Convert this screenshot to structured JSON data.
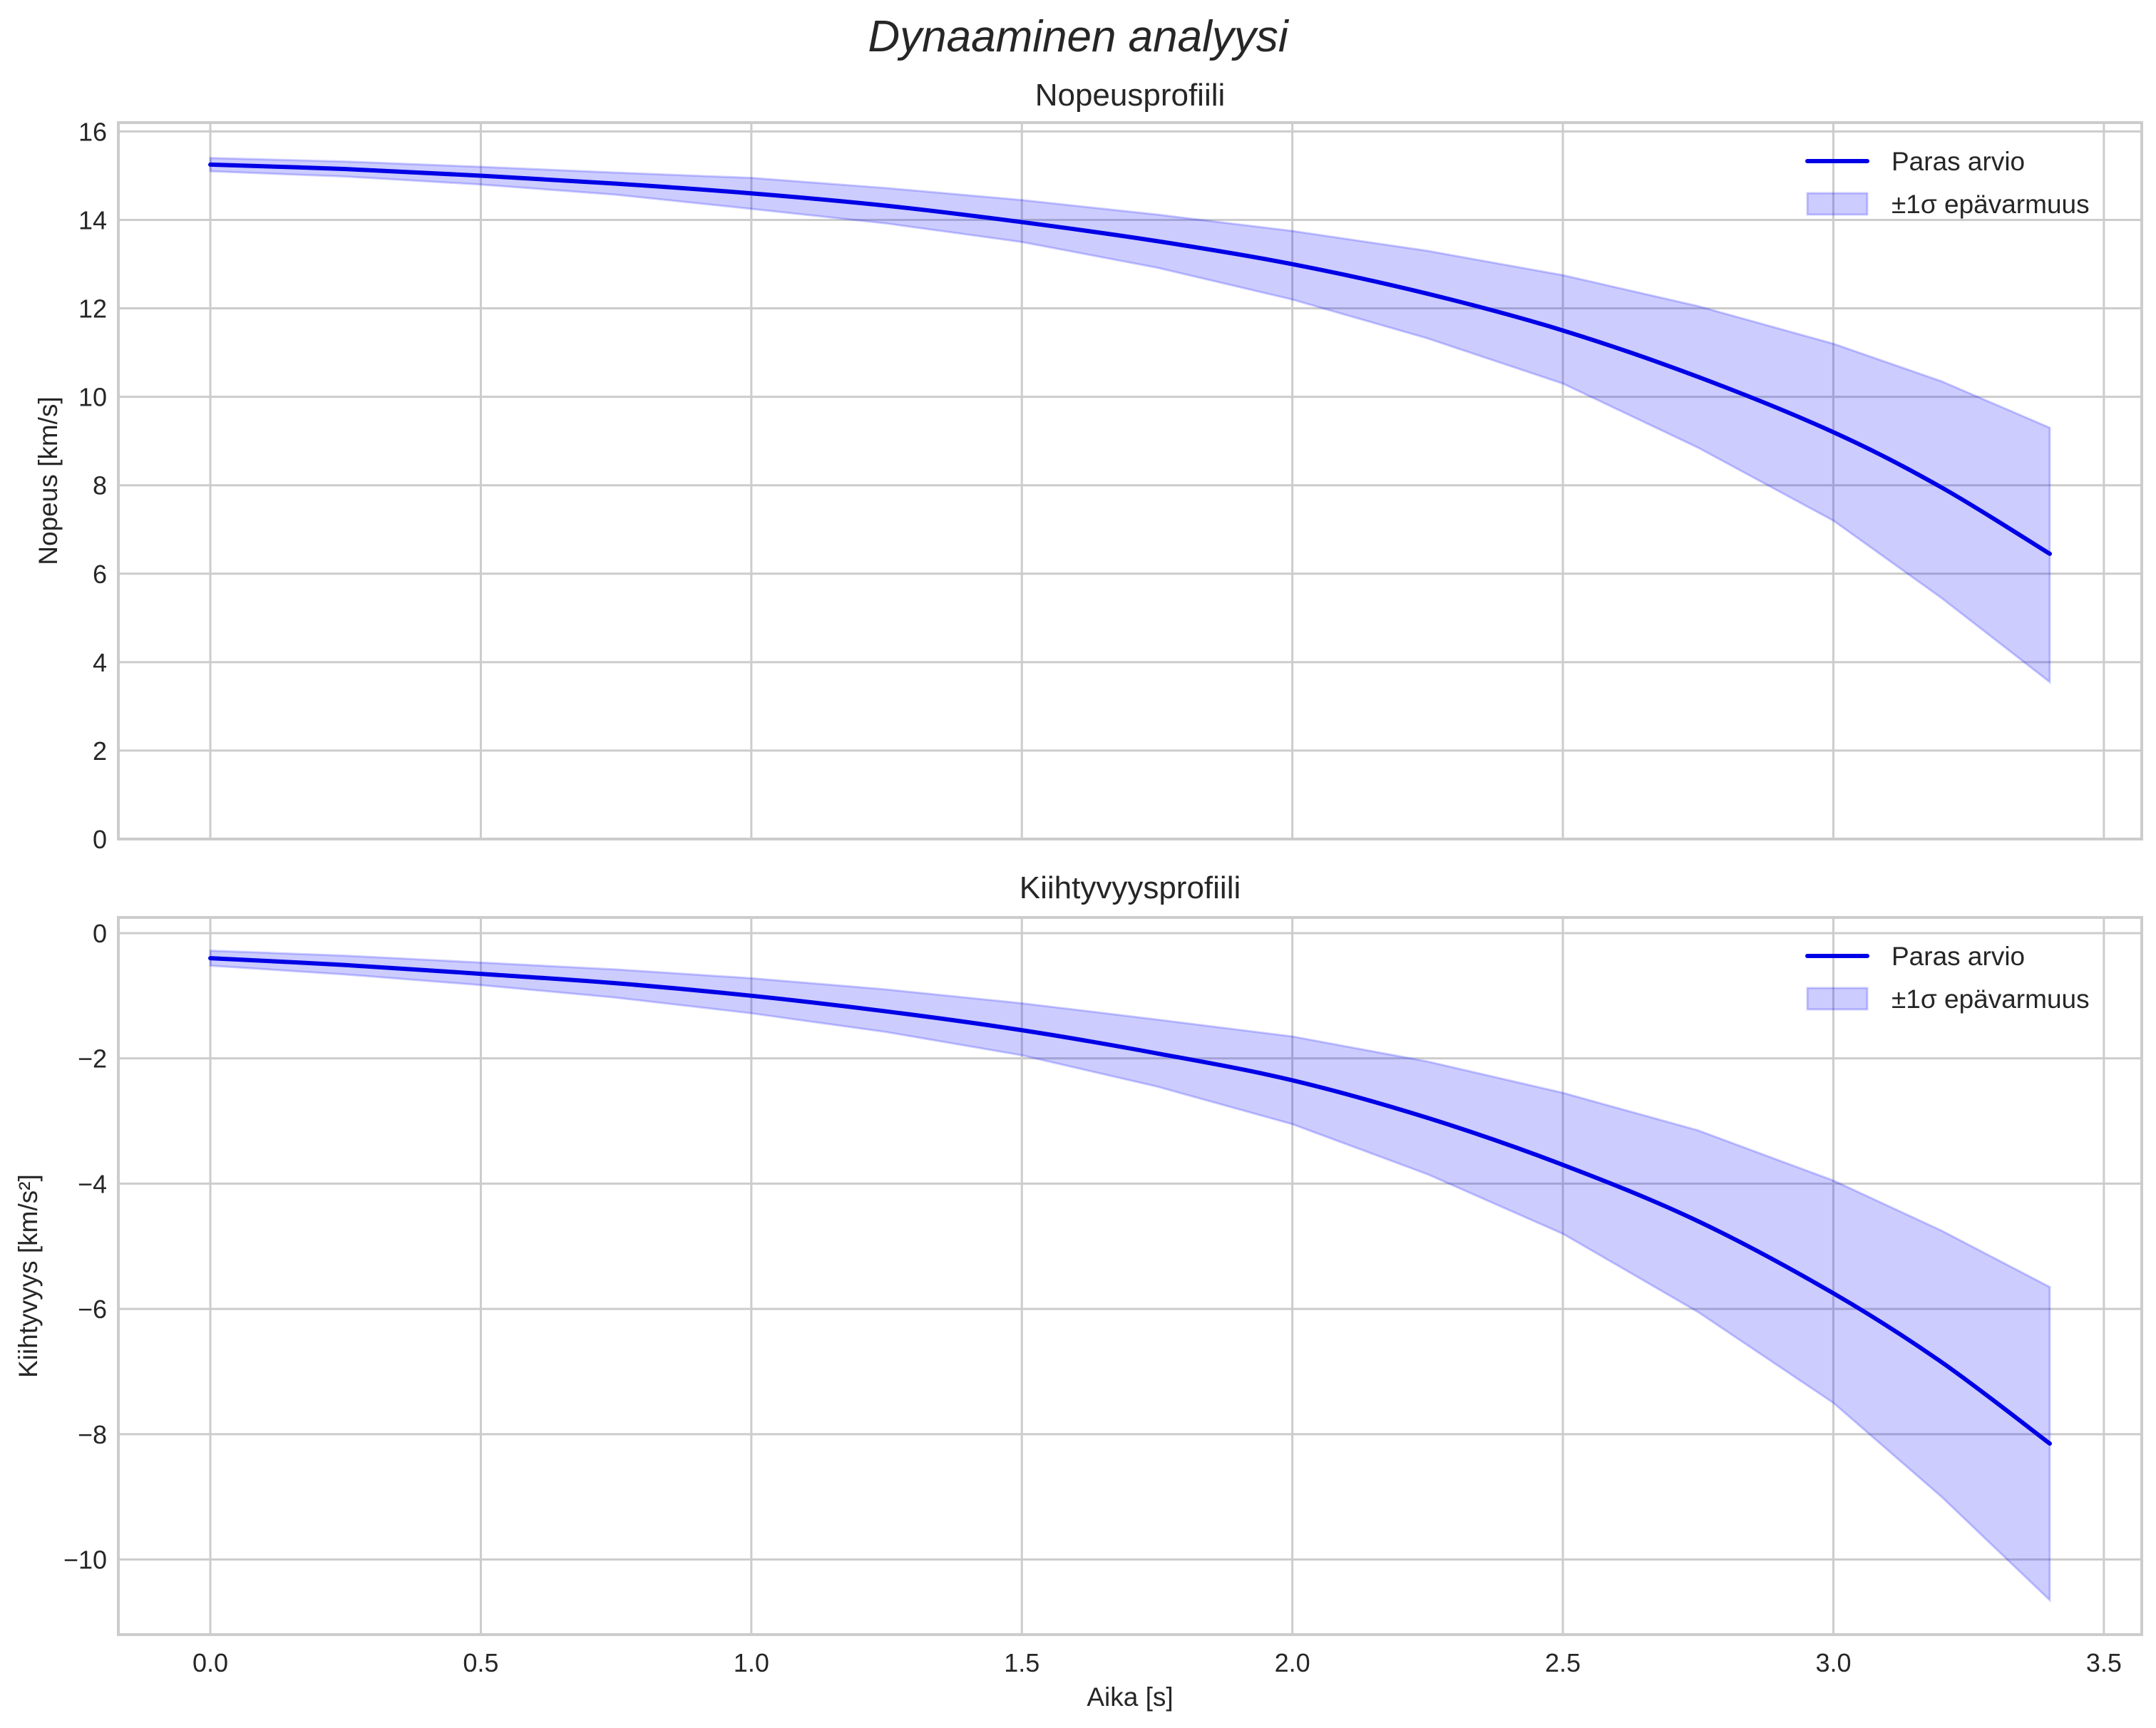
{
  "figure": {
    "suptitle": "Dynaaminen analyysi",
    "xlabel": "Aika [s]",
    "x_ticks": [
      "0.0",
      "0.5",
      "1.0",
      "1.5",
      "2.0",
      "2.5",
      "3.0",
      "3.5"
    ],
    "colors": {
      "line": "#0000e6",
      "band_fill": "#0000ff",
      "band_alpha": 0.2,
      "grid": "#cccccc",
      "text": "#262626"
    }
  },
  "legend": {
    "line_label": "Paras arvio",
    "band_label": "±1σ epävarmuus"
  },
  "chart_data": [
    {
      "type": "line",
      "title": "Nopeusprofiili",
      "xlabel": "",
      "ylabel": "Nopeus [km/s]",
      "xlim": [
        -0.17,
        3.57
      ],
      "ylim": [
        0,
        16.2
      ],
      "y_ticks": [
        "0",
        "2",
        "4",
        "6",
        "8",
        "10",
        "12",
        "14",
        "16"
      ],
      "grid": true,
      "legend_position": "upper right",
      "x": [
        0.0,
        0.25,
        0.5,
        0.75,
        1.0,
        1.25,
        1.5,
        1.75,
        2.0,
        2.25,
        2.5,
        2.75,
        3.0,
        3.2,
        3.4
      ],
      "series": [
        {
          "name": "Paras arvio",
          "kind": "line",
          "values": [
            15.25,
            15.15,
            15.0,
            14.82,
            14.6,
            14.32,
            13.95,
            13.52,
            13.0,
            12.33,
            11.5,
            10.45,
            9.2,
            7.95,
            6.45
          ]
        },
        {
          "name": "±1σ epävarmuus (lower)",
          "kind": "band_lower",
          "values": [
            15.1,
            14.98,
            14.8,
            14.57,
            14.25,
            13.92,
            13.5,
            12.92,
            12.2,
            11.32,
            10.3,
            8.85,
            7.2,
            5.45,
            3.55
          ]
        },
        {
          "name": "±1σ epävarmuus (upper)",
          "kind": "band_upper",
          "values": [
            15.4,
            15.32,
            15.2,
            15.07,
            14.95,
            14.72,
            14.45,
            14.12,
            13.75,
            13.3,
            12.75,
            12.05,
            11.2,
            10.35,
            9.3
          ]
        }
      ]
    },
    {
      "type": "line",
      "title": "Kiihtyvyysprofiili",
      "xlabel": "Aika [s]",
      "ylabel": "Kiihtyvyys [km/s²]",
      "xlim": [
        -0.17,
        3.57
      ],
      "ylim": [
        -11.2,
        0.25
      ],
      "y_ticks": [
        "0",
        "−2",
        "−4",
        "−6",
        "−8",
        "−10"
      ],
      "grid": true,
      "legend_position": "upper right",
      "x": [
        0.0,
        0.25,
        0.5,
        0.75,
        1.0,
        1.25,
        1.5,
        1.75,
        2.0,
        2.25,
        2.5,
        2.75,
        3.0,
        3.2,
        3.4
      ],
      "series": [
        {
          "name": "Paras arvio",
          "kind": "line",
          "values": [
            -0.4,
            -0.51,
            -0.65,
            -0.8,
            -1.0,
            -1.25,
            -1.55,
            -1.92,
            -2.35,
            -2.95,
            -3.7,
            -4.6,
            -5.75,
            -6.85,
            -8.15
          ]
        },
        {
          "name": "±1σ epävarmuus (lower)",
          "kind": "band_lower",
          "values": [
            -0.52,
            -0.66,
            -0.83,
            -1.03,
            -1.28,
            -1.58,
            -1.95,
            -2.45,
            -3.05,
            -3.85,
            -4.8,
            -6.05,
            -7.5,
            -9.0,
            -10.65
          ]
        },
        {
          "name": "±1σ epävarmuus (upper)",
          "kind": "band_upper",
          "values": [
            -0.28,
            -0.36,
            -0.47,
            -0.58,
            -0.72,
            -0.9,
            -1.12,
            -1.38,
            -1.65,
            -2.05,
            -2.55,
            -3.15,
            -3.95,
            -4.75,
            -5.65
          ]
        }
      ]
    }
  ]
}
